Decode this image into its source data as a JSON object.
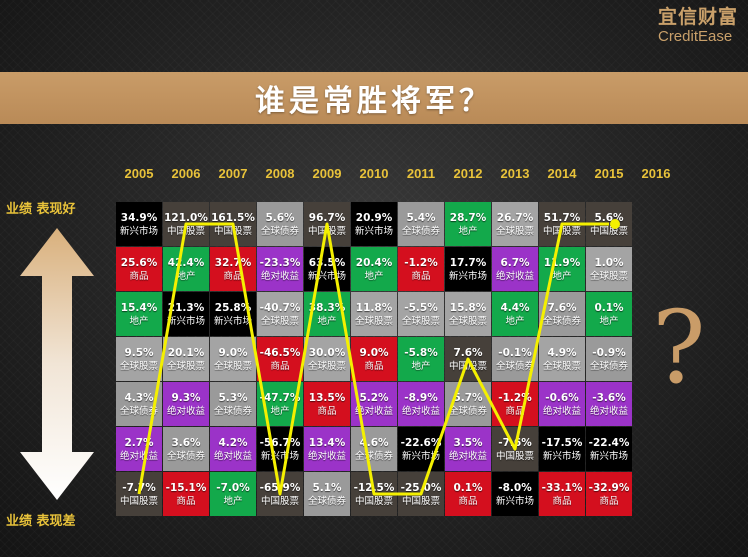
{
  "logo": {
    "cn": "宜信财富",
    "en": "CreditEase"
  },
  "banner": {
    "title": "谁是常胜将军？"
  },
  "labels": {
    "top": "业绩 表现好",
    "bottom": "业绩 表现差",
    "question": "?"
  },
  "colors": {
    "新兴市场": "#000000",
    "中国股票": "#46403a",
    "地产": "#13a94b",
    "全球股票": "#a4a4a4",
    "全球债券": "#9a9a9a",
    "绝对收益": "#9b33c8",
    "商品": "#d40f1e",
    "accent": "#e8c23a",
    "highlight_line": "#f4f000"
  },
  "chart_data": {
    "type": "table",
    "title": "谁是常胜将军？",
    "years": [
      "2005",
      "2006",
      "2007",
      "2008",
      "2009",
      "2010",
      "2011",
      "2012",
      "2013",
      "2014",
      "2015",
      "2016"
    ],
    "rank_label_top": "业绩 表现好",
    "rank_label_bottom": "业绩 表现差",
    "columns": [
      [
        {
          "v": "34.9%",
          "c": "新兴市场"
        },
        {
          "v": "25.6%",
          "c": "商品"
        },
        {
          "v": "15.4%",
          "c": "地产"
        },
        {
          "v": "9.5%",
          "c": "全球股票"
        },
        {
          "v": "4.3%",
          "c": "全球债券"
        },
        {
          "v": "2.7%",
          "c": "绝对收益"
        },
        {
          "v": "-7.7%",
          "c": "中国股票"
        }
      ],
      [
        {
          "v": "121.0%",
          "c": "中国股票"
        },
        {
          "v": "42.4%",
          "c": "地产"
        },
        {
          "v": "21.3%",
          "c": "新兴市场"
        },
        {
          "v": "20.1%",
          "c": "全球股票"
        },
        {
          "v": "9.3%",
          "c": "绝对收益"
        },
        {
          "v": "3.6%",
          "c": "全球债券"
        },
        {
          "v": "-15.1%",
          "c": "商品"
        }
      ],
      [
        {
          "v": "161.5%",
          "c": "中国股票"
        },
        {
          "v": "32.7%",
          "c": "商品"
        },
        {
          "v": "25.8%",
          "c": "新兴市场"
        },
        {
          "v": "9.0%",
          "c": "全球股票"
        },
        {
          "v": "5.3%",
          "c": "全球债券"
        },
        {
          "v": "4.2%",
          "c": "绝对收益"
        },
        {
          "v": "-7.0%",
          "c": "地产"
        }
      ],
      [
        {
          "v": "5.6%",
          "c": "全球债券"
        },
        {
          "v": "-23.3%",
          "c": "绝对收益"
        },
        {
          "v": "-40.7%",
          "c": "全球股票"
        },
        {
          "v": "-46.5%",
          "c": "商品"
        },
        {
          "v": "-47.7%",
          "c": "地产"
        },
        {
          "v": "-56.7%",
          "c": "新兴市场"
        },
        {
          "v": "-65.9%",
          "c": "中国股票"
        }
      ],
      [
        {
          "v": "96.7%",
          "c": "中国股票"
        },
        {
          "v": "63.5%",
          "c": "新兴市场"
        },
        {
          "v": "38.3%",
          "c": "地产"
        },
        {
          "v": "30.0%",
          "c": "全球股票"
        },
        {
          "v": "13.5%",
          "c": "商品"
        },
        {
          "v": "13.4%",
          "c": "绝对收益"
        },
        {
          "v": "5.1%",
          "c": "全球债券"
        }
      ],
      [
        {
          "v": "20.9%",
          "c": "新兴市场"
        },
        {
          "v": "20.4%",
          "c": "地产"
        },
        {
          "v": "11.8%",
          "c": "全球股票"
        },
        {
          "v": "9.0%",
          "c": "商品"
        },
        {
          "v": "5.2%",
          "c": "绝对收益"
        },
        {
          "v": "4.6%",
          "c": "全球债券"
        },
        {
          "v": "-12.5%",
          "c": "中国股票"
        }
      ],
      [
        {
          "v": "5.4%",
          "c": "全球债券"
        },
        {
          "v": "-1.2%",
          "c": "商品"
        },
        {
          "v": "-5.5%",
          "c": "全球股票"
        },
        {
          "v": "-5.8%",
          "c": "地产"
        },
        {
          "v": "-8.9%",
          "c": "绝对收益"
        },
        {
          "v": "-22.6%",
          "c": "新兴市场"
        },
        {
          "v": "-25.0%",
          "c": "中国股票"
        }
      ],
      [
        {
          "v": "28.7%",
          "c": "地产"
        },
        {
          "v": "17.7%",
          "c": "新兴市场"
        },
        {
          "v": "15.8%",
          "c": "全球股票"
        },
        {
          "v": "7.6%",
          "c": "中国股票"
        },
        {
          "v": "5.7%",
          "c": "全球债券"
        },
        {
          "v": "3.5%",
          "c": "绝对收益"
        },
        {
          "v": "0.1%",
          "c": "商品"
        }
      ],
      [
        {
          "v": "26.7%",
          "c": "全球股票"
        },
        {
          "v": "6.7%",
          "c": "绝对收益"
        },
        {
          "v": "4.4%",
          "c": "地产"
        },
        {
          "v": "-0.1%",
          "c": "全球债券"
        },
        {
          "v": "-1.2%",
          "c": "商品"
        },
        {
          "v": "-7.6%",
          "c": "中国股票"
        },
        {
          "v": "-8.0%",
          "c": "新兴市场"
        }
      ],
      [
        {
          "v": "51.7%",
          "c": "中国股票"
        },
        {
          "v": "11.9%",
          "c": "地产"
        },
        {
          "v": "7.6%",
          "c": "全球债券"
        },
        {
          "v": "4.9%",
          "c": "全球股票"
        },
        {
          "v": "-0.6%",
          "c": "绝对收益"
        },
        {
          "v": "-17.5%",
          "c": "新兴市场"
        },
        {
          "v": "-33.1%",
          "c": "商品"
        }
      ],
      [
        {
          "v": "5.6%",
          "c": "中国股票"
        },
        {
          "v": "1.0%",
          "c": "全球股票"
        },
        {
          "v": "0.1%",
          "c": "地产"
        },
        {
          "v": "-0.9%",
          "c": "全球债券"
        },
        {
          "v": "-3.6%",
          "c": "绝对收益"
        },
        {
          "v": "-22.4%",
          "c": "新兴市场"
        },
        {
          "v": "-32.9%",
          "c": "商品"
        }
      ]
    ],
    "highlight_series": {
      "name": "中国股票",
      "ranks": [
        7,
        1,
        1,
        7,
        1,
        7,
        7,
        4,
        6,
        1,
        1
      ]
    }
  }
}
